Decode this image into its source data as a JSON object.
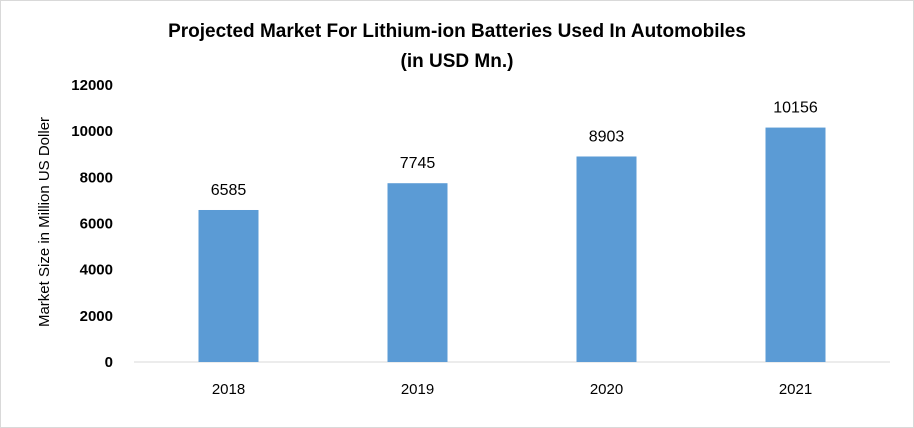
{
  "chart_data": {
    "type": "bar",
    "title": "Projected Market For Lithium-ion Batteries Used In Automobiles",
    "subtitle": "(in USD Mn.)",
    "xlabel": "",
    "ylabel": "Market Size in Million US Doller",
    "categories": [
      "2018",
      "2019",
      "2020",
      "2021"
    ],
    "values": [
      6585,
      7745,
      8903,
      10156
    ],
    "ylim": [
      0,
      12000
    ],
    "yticks": [
      0,
      2000,
      4000,
      6000,
      8000,
      10000,
      12000
    ],
    "grid": false,
    "legend": "none",
    "bar_color": "#5b9bd5",
    "axis_color": "#d9d9d9"
  }
}
